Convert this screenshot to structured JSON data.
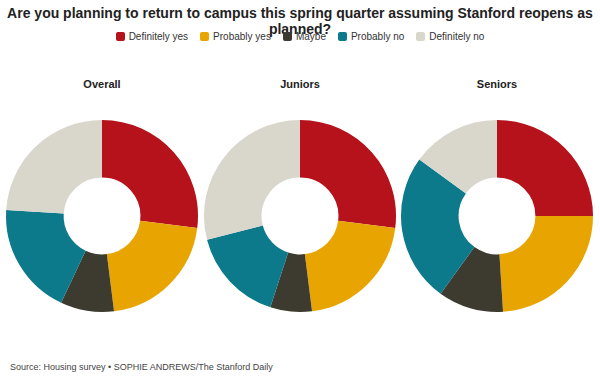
{
  "title": "Are you planning to return to campus this spring quarter assuming Stanford reopens as planned?",
  "source": "Source: Housing survey • SOPHIE ANDREWS/The Stanford Daily",
  "legend": "top",
  "chart_data": [
    {
      "type": "doughnut",
      "title": "Overall",
      "categories": [
        "Definitely yes",
        "Probably yes",
        "Maybe",
        "Probably no",
        "Definitely no"
      ],
      "values": [
        27,
        21,
        9,
        19,
        24
      ],
      "colors": [
        "#b5121b",
        "#e8a400",
        "#3d3a2f",
        "#0d7a8c",
        "#d9d6cc"
      ]
    },
    {
      "type": "doughnut",
      "title": "Juniors",
      "categories": [
        "Definitely yes",
        "Probably yes",
        "Maybe",
        "Probably no",
        "Definitely no"
      ],
      "values": [
        27,
        21,
        7,
        16,
        29
      ],
      "colors": [
        "#b5121b",
        "#e8a400",
        "#3d3a2f",
        "#0d7a8c",
        "#d9d6cc"
      ]
    },
    {
      "type": "doughnut",
      "title": "Seniors",
      "categories": [
        "Definitely yes",
        "Probably yes",
        "Maybe",
        "Probably no",
        "Definitely no"
      ],
      "values": [
        25,
        24,
        11,
        25,
        15
      ],
      "colors": [
        "#b5121b",
        "#e8a400",
        "#3d3a2f",
        "#0d7a8c",
        "#d9d6cc"
      ]
    }
  ]
}
